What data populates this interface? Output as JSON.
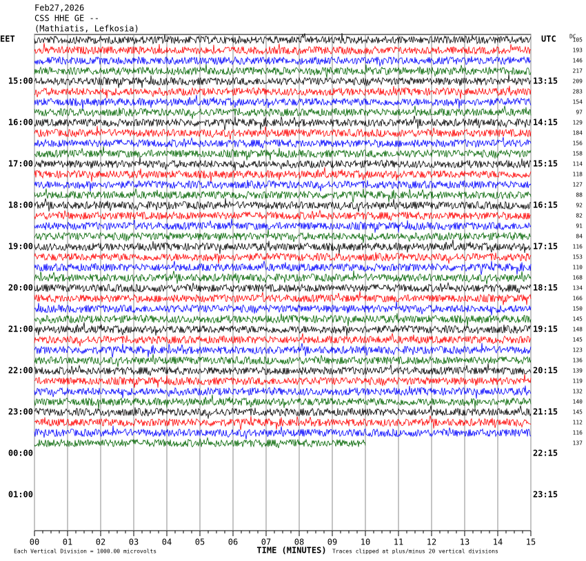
{
  "header": {
    "date": "Feb27,2026",
    "station": "CSS HHE GE --",
    "location": "(Mathiatis, Lefkosia)"
  },
  "left_label": "EET",
  "left_times": [
    "15:00",
    "16:00",
    "17:00",
    "18:00",
    "19:00",
    "20:00",
    "21:00",
    "22:00",
    "23:00",
    "00:00",
    "01:00"
  ],
  "right_label": "UTC",
  "right_times": [
    "13:15",
    "14:15",
    "15:15",
    "16:15",
    "17:15",
    "18:15",
    "19:15",
    "20:15",
    "21:15",
    "22:15",
    "23:15"
  ],
  "dc_label": "DC",
  "dc_values": [
    105,
    193,
    146,
    217,
    209,
    283,
    154,
    97,
    129,
    184,
    156,
    158,
    114,
    118,
    127,
    88,
    92,
    82,
    91,
    84,
    116,
    153,
    110,
    168,
    134,
    166,
    150,
    145,
    148,
    145,
    123,
    136,
    139,
    119,
    132,
    140,
    145,
    112,
    116,
    137
  ],
  "x_ticks": [
    "00",
    "01",
    "02",
    "03",
    "04",
    "05",
    "06",
    "07",
    "08",
    "09",
    "10",
    "11",
    "12",
    "13",
    "14",
    "15"
  ],
  "x_title": "TIME (MINUTES)",
  "footer_left": "Each Vertical Division = 1000.00 microvolts",
  "footer_right": "Traces clipped at plus/minus 20 vertical divisions"
}
